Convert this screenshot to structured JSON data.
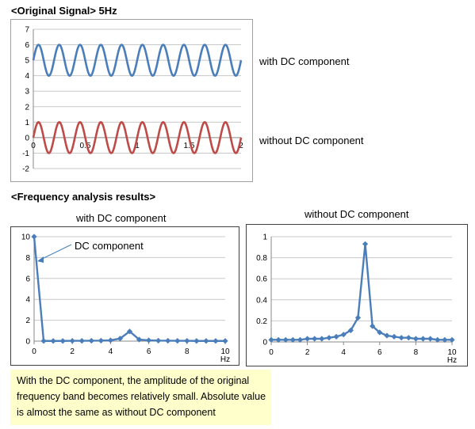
{
  "headings": {
    "original": "<Original Signal> 5Hz",
    "frequency": "<Frequency analysis results>"
  },
  "note": "With the DC component, the amplitude of the original frequency band becomes relatively small. Absolute value is almost the same as without DC component",
  "chart_data": [
    {
      "type": "line",
      "title": "",
      "xlabel": "",
      "ylabel": "",
      "xlim": [
        0,
        2
      ],
      "ylim": [
        -2,
        7
      ],
      "x_ticks": [
        0,
        0.5,
        1,
        1.5,
        2
      ],
      "x_tick_labels": [
        "0",
        "0.5",
        "1",
        "1.5",
        "2"
      ],
      "y_ticks": [
        -2,
        -1,
        0,
        1,
        2,
        3,
        4,
        5,
        6,
        7
      ],
      "grid": true,
      "legend": "none",
      "series": [
        {
          "name": "with DC component",
          "color": "#4a7ebb",
          "function": "5 + sin(2*pi*5*t)",
          "frequency_hz": 5,
          "offset": 5,
          "amplitude": 1
        },
        {
          "name": "without DC component",
          "color": "#be4b48",
          "function": "sin(2*pi*5*t)",
          "frequency_hz": 5,
          "offset": 0,
          "amplitude": 1
        }
      ]
    },
    {
      "type": "line",
      "title": "with DC component",
      "xlabel": "Hz",
      "ylabel": "",
      "xlim": [
        0,
        10
      ],
      "ylim": [
        0,
        10
      ],
      "x_ticks": [
        0,
        2,
        4,
        6,
        8,
        10
      ],
      "y_ticks": [
        0,
        2,
        4,
        6,
        8,
        10
      ],
      "grid": true,
      "legend": "none",
      "annotation": "DC component",
      "series": [
        {
          "color": "#4a7ebb",
          "x": [
            0,
            0.5,
            1,
            1.5,
            2,
            2.5,
            3,
            3.5,
            4,
            4.5,
            5,
            5.5,
            6,
            6.5,
            7,
            7.5,
            8,
            8.5,
            9,
            9.5,
            10
          ],
          "values": [
            10,
            0.02,
            0.02,
            0.02,
            0.03,
            0.03,
            0.04,
            0.05,
            0.08,
            0.25,
            0.93,
            0.15,
            0.08,
            0.05,
            0.04,
            0.03,
            0.03,
            0.02,
            0.02,
            0.02,
            0.02
          ]
        }
      ]
    },
    {
      "type": "line",
      "title": "without DC component",
      "xlabel": "Hz",
      "ylabel": "",
      "xlim": [
        0,
        10
      ],
      "ylim": [
        0,
        1
      ],
      "x_ticks": [
        0,
        2,
        4,
        6,
        8,
        10
      ],
      "y_ticks": [
        0,
        0.2,
        0.4,
        0.6,
        0.8,
        1
      ],
      "y_tick_labels": [
        "0",
        "0.2",
        "0.4",
        "0.6",
        "0.8",
        "1"
      ],
      "grid": true,
      "legend": "none",
      "series": [
        {
          "color": "#4a7ebb",
          "x": [
            0,
            0.4,
            0.8,
            1.2,
            1.6,
            2,
            2.4,
            2.8,
            3.2,
            3.6,
            4,
            4.4,
            4.8,
            5.2,
            5.6,
            6,
            6.4,
            6.8,
            7.2,
            7.6,
            8,
            8.4,
            8.8,
            9.2,
            9.6,
            10
          ],
          "values": [
            0.02,
            0.02,
            0.02,
            0.02,
            0.02,
            0.03,
            0.03,
            0.03,
            0.04,
            0.05,
            0.07,
            0.11,
            0.23,
            0.93,
            0.15,
            0.09,
            0.06,
            0.05,
            0.04,
            0.04,
            0.03,
            0.03,
            0.03,
            0.02,
            0.02,
            0.02
          ]
        }
      ]
    }
  ]
}
